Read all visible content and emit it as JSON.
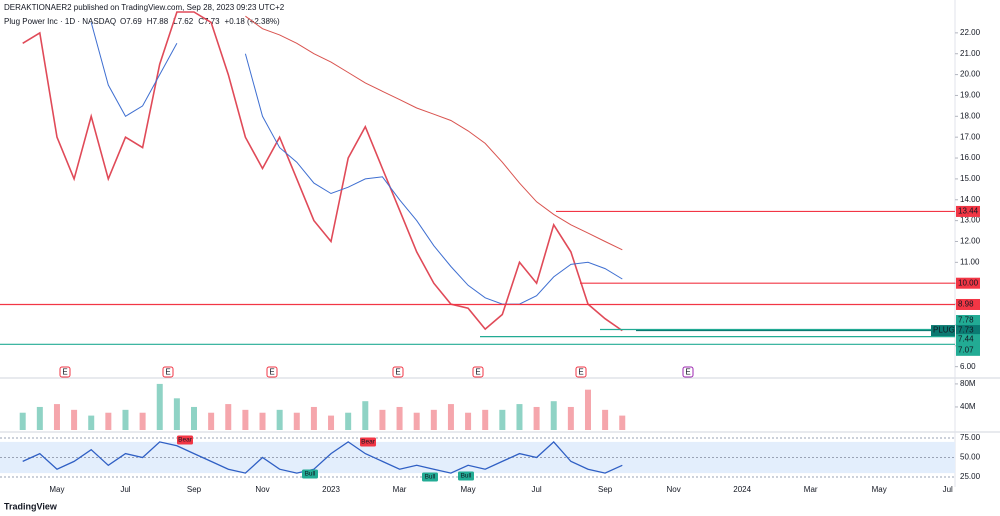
{
  "published": "DERAKTIONAER2 published on TradingView.com, Sep 28, 2023 09:23 UTC+2",
  "footer": "TradingView",
  "chart_data": {
    "type": "line",
    "title": "Plug Power Inc · 1D · NASDAQ",
    "legend_values": [
      "O7.69",
      "H7.88",
      "L7.62",
      "C7.73",
      "+0.18 (+2.38%)"
    ],
    "categories": [
      null,
      null,
      "May",
      null,
      null,
      null,
      "Jul",
      null,
      null,
      null,
      "Sep",
      null,
      null,
      null,
      "Nov",
      null,
      null,
      null,
      "2023",
      null,
      null,
      null,
      "Mar",
      null,
      null,
      null,
      "May",
      null,
      null,
      null,
      "Jul",
      null,
      null,
      null,
      "Sep",
      null,
      null,
      null,
      "Nov",
      null,
      null,
      null,
      "2024",
      null,
      null,
      null,
      "Mar",
      null,
      null,
      null,
      "May",
      null,
      null,
      null,
      "Jul"
    ],
    "series": [
      {
        "color": "#e04a58",
        "values": [
          21.5,
          22,
          17,
          15,
          18,
          15,
          17,
          16.5,
          20.5,
          23,
          23,
          22.5,
          20,
          17,
          15.5,
          17,
          15,
          13,
          12,
          16,
          17.5,
          15.5,
          13.5,
          11.5,
          10,
          9,
          8.8,
          7.8,
          8.5,
          11,
          10,
          12.8,
          11.5,
          9,
          8.3,
          7.73,
          null,
          null,
          null,
          null,
          null,
          null,
          null,
          null,
          null,
          null,
          null,
          null,
          null,
          null,
          null,
          null,
          null,
          null,
          null
        ]
      },
      {
        "color": "#3f6fd1",
        "values": [
          null,
          null,
          null,
          null,
          22.5,
          19.5,
          18,
          18.5,
          20,
          21.5,
          null,
          null,
          null,
          21,
          18,
          16.5,
          15.8,
          14.8,
          14.3,
          14.6,
          15,
          15.1,
          14,
          13,
          11.8,
          10.8,
          9.9,
          9.3,
          9,
          9,
          9.4,
          10.3,
          10.9,
          11,
          10.7,
          10.2,
          null,
          null,
          null,
          null,
          null,
          null,
          null,
          null,
          null,
          null,
          null,
          null,
          null,
          null,
          null,
          null,
          null,
          null,
          null
        ]
      },
      {
        "color": "#d9534f",
        "values": [
          null,
          null,
          null,
          null,
          null,
          null,
          null,
          null,
          null,
          null,
          null,
          null,
          null,
          22.8,
          22.2,
          21.9,
          21.5,
          21,
          20.6,
          20.1,
          19.6,
          19.2,
          18.8,
          18.4,
          18.1,
          17.8,
          17.3,
          16.7,
          15.8,
          14.8,
          13.9,
          13.3,
          12.8,
          12.4,
          12,
          11.6,
          null,
          null,
          null,
          null,
          null,
          null,
          null,
          null,
          null,
          null,
          null,
          null,
          null,
          null,
          null,
          null,
          null,
          null,
          null
        ]
      }
    ],
    "ylim": [
      5.6,
      23
    ],
    "yticks": [
      {
        "value": 6,
        "label": "6.00"
      },
      {
        "value": 7,
        "label": "7.00"
      },
      {
        "value": 8,
        "label": "8.00"
      },
      {
        "value": 9,
        "label": "9.00"
      },
      {
        "value": 10,
        "label": "10.00"
      },
      {
        "value": 11,
        "label": "11.00"
      },
      {
        "value": 12,
        "label": "12.00"
      },
      {
        "value": 13,
        "label": "13.00"
      },
      {
        "value": 14,
        "label": "14.00"
      },
      {
        "value": 15,
        "label": "15.00"
      },
      {
        "value": 16,
        "label": "16.00"
      },
      {
        "value": 17,
        "label": "17.00"
      },
      {
        "value": 18,
        "label": "18.00"
      },
      {
        "value": 19,
        "label": "19.00"
      },
      {
        "value": 20,
        "label": "20.00"
      },
      {
        "value": 21,
        "label": "21.00"
      },
      {
        "value": 22,
        "label": "22.00"
      }
    ],
    "levels": [
      {
        "value": 13.44,
        "label": "13.44",
        "color": "#f23645"
      },
      {
        "value": 10,
        "label": "10.00",
        "color": "#f23645"
      },
      {
        "value": 8.98,
        "label": "8.98",
        "color": "#f23645"
      },
      {
        "value": 7.78,
        "label": "7.78",
        "color": "#22ab94"
      },
      {
        "value": 7.73,
        "label": "7.73",
        "color": "#0b7a72",
        "name": "PLUG"
      },
      {
        "value": 7.44,
        "label": "7.44",
        "color": "#22ab94"
      },
      {
        "value": 7.07,
        "label": "7.07",
        "color": "#22ab94"
      }
    ],
    "events": [
      "E",
      "E",
      "E",
      "E",
      "E",
      "E",
      "E"
    ],
    "volume": {
      "ylim": [
        0,
        92000000
      ],
      "yticks": [
        {
          "value": 80000000,
          "label": "80M"
        },
        {
          "value": 40000000,
          "label": "40M"
        }
      ],
      "values": [
        30000000,
        40000000,
        45000000,
        35000000,
        25000000,
        30000000,
        35000000,
        30000000,
        80000000,
        55000000,
        40000000,
        30000000,
        45000000,
        35000000,
        30000000,
        35000000,
        30000000,
        40000000,
        25000000,
        30000000,
        50000000,
        35000000,
        40000000,
        30000000,
        35000000,
        45000000,
        30000000,
        35000000,
        35000000,
        45000000,
        40000000,
        50000000,
        40000000,
        70000000,
        35000000,
        25000000
      ]
    },
    "rsi": {
      "color": "#2f5fc4",
      "ylim": [
        12.2,
        81.4
      ],
      "yticks": [
        {
          "value": 75,
          "label": "75.00"
        },
        {
          "value": 50,
          "label": "50.00"
        },
        {
          "value": 25,
          "label": "25.00"
        }
      ],
      "band": [
        30,
        70
      ],
      "values": [
        45,
        55,
        35,
        45,
        60,
        40,
        55,
        50,
        70,
        65,
        55,
        45,
        35,
        30,
        50,
        35,
        30,
        35,
        55,
        70,
        55,
        45,
        35,
        40,
        35,
        30,
        40,
        35,
        45,
        55,
        50,
        70,
        45,
        35,
        30,
        40
      ],
      "signals": [
        "Bear",
        "Bull",
        "Bear",
        "Bull",
        "Bull"
      ]
    }
  }
}
